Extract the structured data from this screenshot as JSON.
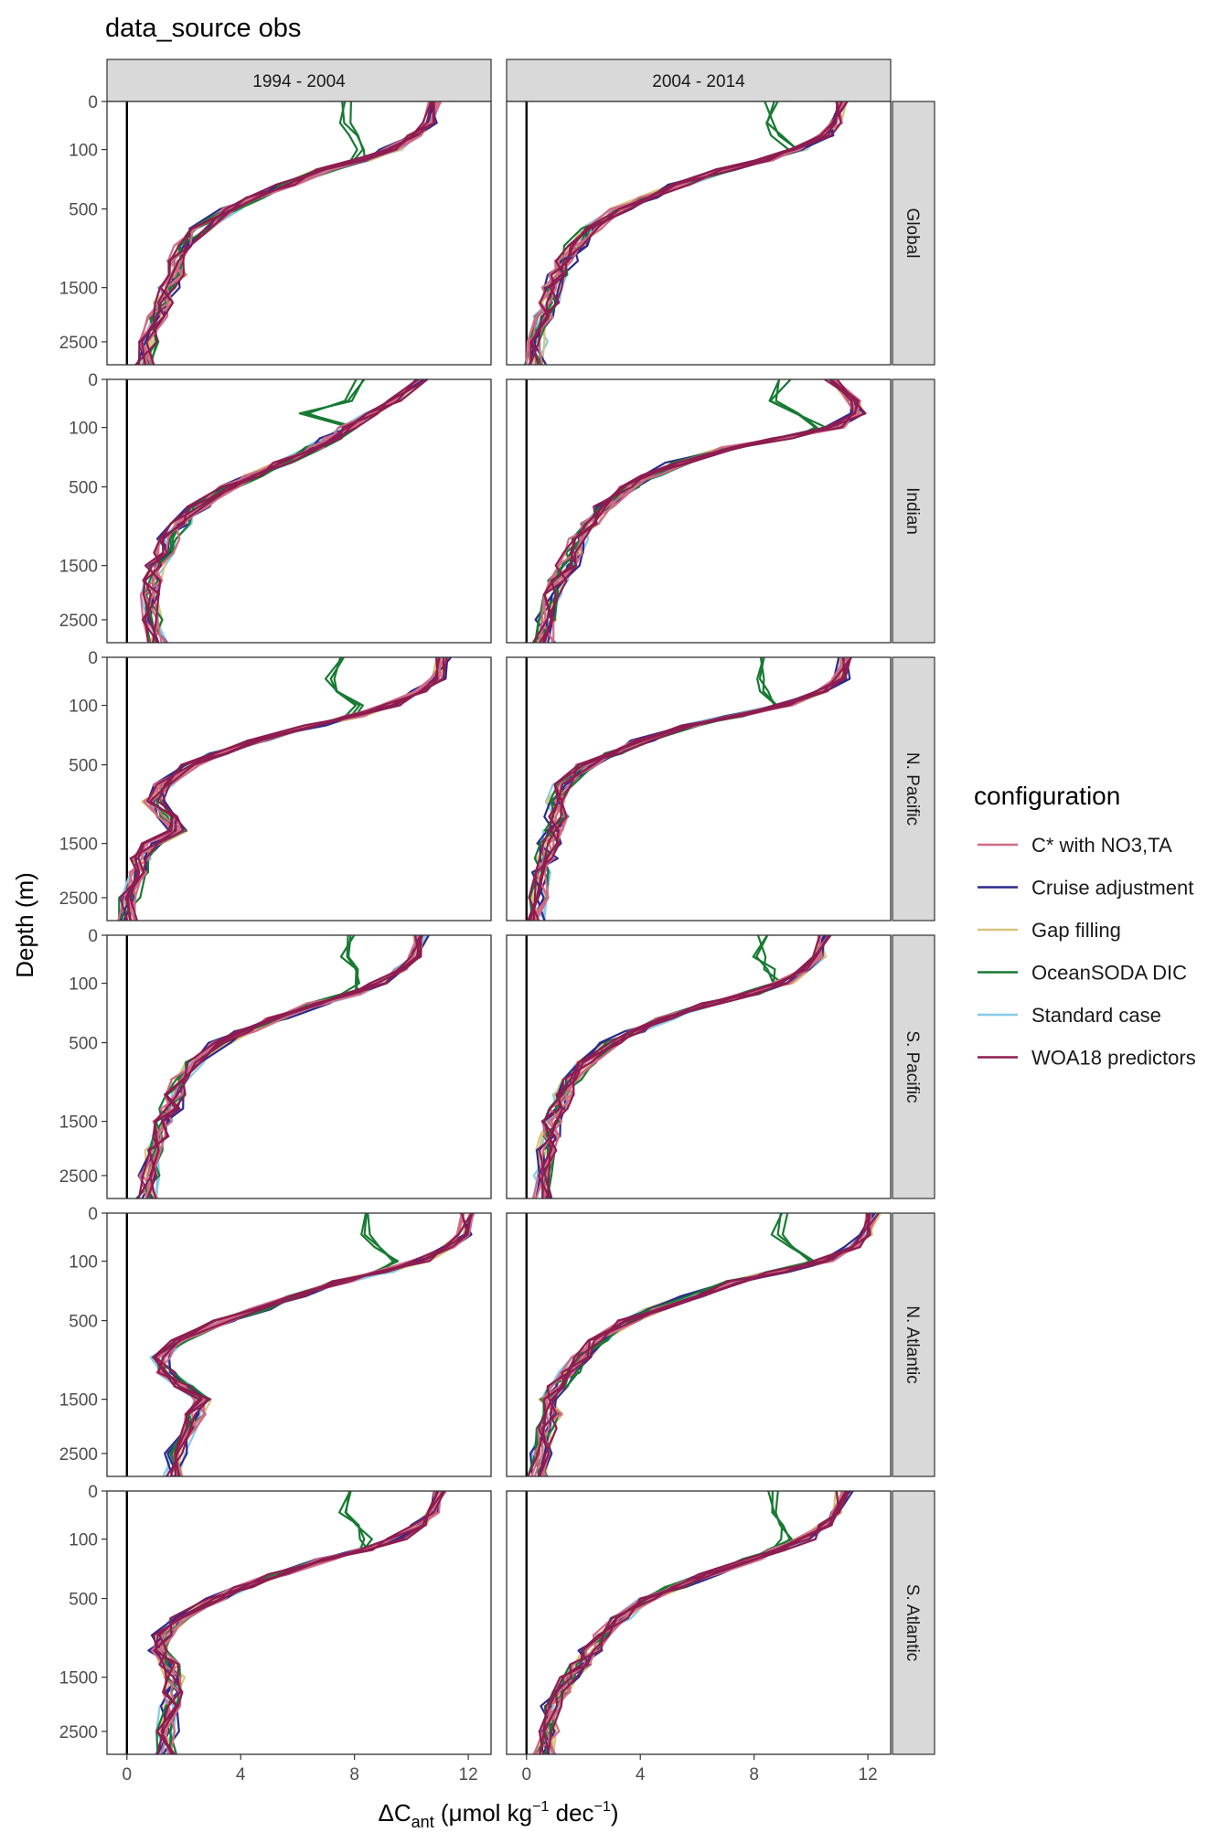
{
  "chart_data": {
    "type": "line",
    "title": "data_source obs",
    "xlabel": "ΔC_ant (μmol kg⁻¹ dec⁻¹)",
    "xlabel_parts": {
      "main": "ΔC",
      "sub": "ant",
      "unit_start": " (μmol kg",
      "exp1": "−1",
      "unit_mid": " dec",
      "exp2": "−1",
      "unit_end": ")"
    },
    "ylabel": "Depth (m)",
    "x_ticks": [
      0,
      4,
      8,
      12
    ],
    "x_tick_labels": [
      "0",
      "4",
      "8",
      "12"
    ],
    "xlim": [
      -0.7,
      12.8
    ],
    "y_scale": "sqrt-reversed",
    "y_ticks": [
      0,
      100,
      500,
      1500,
      2500
    ],
    "y_tick_labels": [
      "0",
      "100",
      "500",
      "1500",
      "2500"
    ],
    "ylim": [
      3000,
      0
    ],
    "vline_x": 0,
    "columns": [
      "1994 - 2004",
      "2004 - 2014"
    ],
    "rows": [
      "Global",
      "Indian",
      "N. Pacific",
      "S. Pacific",
      "N. Atlantic",
      "S. Atlantic"
    ],
    "legend": {
      "title": "configuration",
      "placement": "right",
      "entries": [
        {
          "name": "C* with NO3,TA",
          "color": "#d16b86"
        },
        {
          "name": "Cruise adjustment",
          "color": "#2b2a8c"
        },
        {
          "name": "Gap filling",
          "color": "#d7c47d"
        },
        {
          "name": "OceanSODA DIC",
          "color": "#187a33"
        },
        {
          "name": "Standard case",
          "color": "#86cbe8"
        },
        {
          "name": "WOA18 predictors",
          "color": "#8d1c50"
        }
      ]
    },
    "depth_levels": [
      0,
      20,
      50,
      100,
      150,
      200,
      300,
      400,
      500,
      700,
      900,
      1100,
      1300,
      1500,
      1750,
      2000,
      2500,
      3000
    ],
    "panels": [
      {
        "row": "Global",
        "col": "1994 - 2004",
        "profile": [
          10.8,
          10.6,
          10.1,
          9.3,
          8.2,
          7.0,
          5.6,
          4.5,
          3.7,
          2.6,
          2.0,
          1.7,
          1.8,
          1.4,
          1.3,
          1.1,
          0.8,
          0.6
        ],
        "surface_soda": [
          7.8,
          7.7,
          7.9,
          8.1
        ]
      },
      {
        "row": "Global",
        "col": "2004 - 2014",
        "profile": [
          11.1,
          10.9,
          10.5,
          9.6,
          8.4,
          7.0,
          5.4,
          4.2,
          3.3,
          2.3,
          1.7,
          1.3,
          1.1,
          0.9,
          0.8,
          0.6,
          0.4,
          0.3
        ],
        "surface_soda": [
          8.6,
          8.5,
          8.8,
          9.4
        ]
      },
      {
        "row": "Indian",
        "col": "1994 - 2004",
        "profile": [
          10.4,
          9.4,
          8.6,
          7.8,
          7.2,
          6.6,
          5.5,
          4.5,
          3.6,
          2.5,
          1.9,
          1.5,
          1.3,
          1.0,
          0.9,
          0.8,
          0.9,
          1.1
        ],
        "surface_soda": [
          8.2,
          7.8,
          6.3,
          7.9
        ]
      },
      {
        "row": "Indian",
        "col": "2004 - 2014",
        "profile": [
          10.7,
          11.5,
          11.7,
          10.8,
          9.0,
          7.2,
          5.4,
          4.4,
          3.6,
          2.7,
          2.2,
          1.8,
          1.6,
          1.4,
          1.1,
          0.9,
          0.7,
          0.6
        ],
        "surface_soda": [
          9.1,
          8.6,
          9.6,
          10.4
        ]
      },
      {
        "row": "N. Pacific",
        "col": "1994 - 2004",
        "profile": [
          11.1,
          10.9,
          10.3,
          9.2,
          8.0,
          6.6,
          4.6,
          3.2,
          2.2,
          1.3,
          0.9,
          1.4,
          1.8,
          0.9,
          0.5,
          0.4,
          0.1,
          0.0
        ],
        "surface_soda": [
          7.4,
          7.1,
          7.3,
          8.2
        ]
      },
      {
        "row": "N. Pacific",
        "col": "2004 - 2014",
        "profile": [
          11.2,
          11.0,
          10.4,
          9.0,
          7.3,
          5.8,
          4.1,
          3.0,
          2.1,
          1.3,
          1.0,
          1.1,
          0.9,
          0.8,
          0.6,
          0.5,
          0.4,
          0.3
        ],
        "surface_soda": [
          8.1,
          8.2,
          8.4,
          8.6
        ]
      },
      {
        "row": "S. Pacific",
        "col": "1994 - 2004",
        "profile": [
          10.3,
          10.1,
          9.6,
          8.9,
          7.9,
          6.7,
          5.2,
          4.2,
          3.3,
          2.4,
          1.9,
          1.7,
          1.5,
          1.3,
          1.1,
          0.9,
          0.8,
          0.7
        ],
        "surface_soda": [
          7.8,
          7.7,
          7.9,
          8.1
        ]
      },
      {
        "row": "S. Pacific",
        "col": "2004 - 2014",
        "profile": [
          10.5,
          10.3,
          9.8,
          9.0,
          7.8,
          6.5,
          4.9,
          3.8,
          3.0,
          2.1,
          1.6,
          1.3,
          1.1,
          0.9,
          0.8,
          0.7,
          0.6,
          0.5
        ],
        "surface_soda": [
          8.3,
          8.2,
          8.5,
          8.8
        ]
      },
      {
        "row": "N. Atlantic",
        "col": "1994 - 2004",
        "profile": [
          12.0,
          11.8,
          11.3,
          10.3,
          9.0,
          7.6,
          5.9,
          4.6,
          3.4,
          1.8,
          1.2,
          1.4,
          2.0,
          2.6,
          2.4,
          2.1,
          1.8,
          1.6
        ],
        "surface_soda": [
          8.4,
          8.3,
          8.8,
          9.3
        ]
      },
      {
        "row": "N. Atlantic",
        "col": "2004 - 2014",
        "profile": [
          12.2,
          12.0,
          11.5,
          10.4,
          8.8,
          7.4,
          5.8,
          4.5,
          3.6,
          2.5,
          1.9,
          1.5,
          1.1,
          0.8,
          0.9,
          0.7,
          0.5,
          0.4
        ],
        "surface_soda": [
          9.1,
          8.8,
          9.5,
          10.0
        ]
      },
      {
        "row": "S. Atlantic",
        "col": "1994 - 2004",
        "profile": [
          11.0,
          10.8,
          10.3,
          9.5,
          8.3,
          7.0,
          5.3,
          4.1,
          3.1,
          1.9,
          1.3,
          1.2,
          1.5,
          1.7,
          1.6,
          1.5,
          1.4,
          1.4
        ],
        "surface_soda": [
          7.8,
          7.7,
          8.1,
          8.4
        ]
      },
      {
        "row": "S. Atlantic",
        "col": "2004 - 2014",
        "profile": [
          11.1,
          10.9,
          10.5,
          9.8,
          8.8,
          7.9,
          6.4,
          5.2,
          4.3,
          3.3,
          2.7,
          2.3,
          1.9,
          1.5,
          1.2,
          1.0,
          0.8,
          0.6
        ],
        "surface_soda": [
          8.7,
          8.6,
          8.9,
          9.2
        ]
      }
    ]
  }
}
